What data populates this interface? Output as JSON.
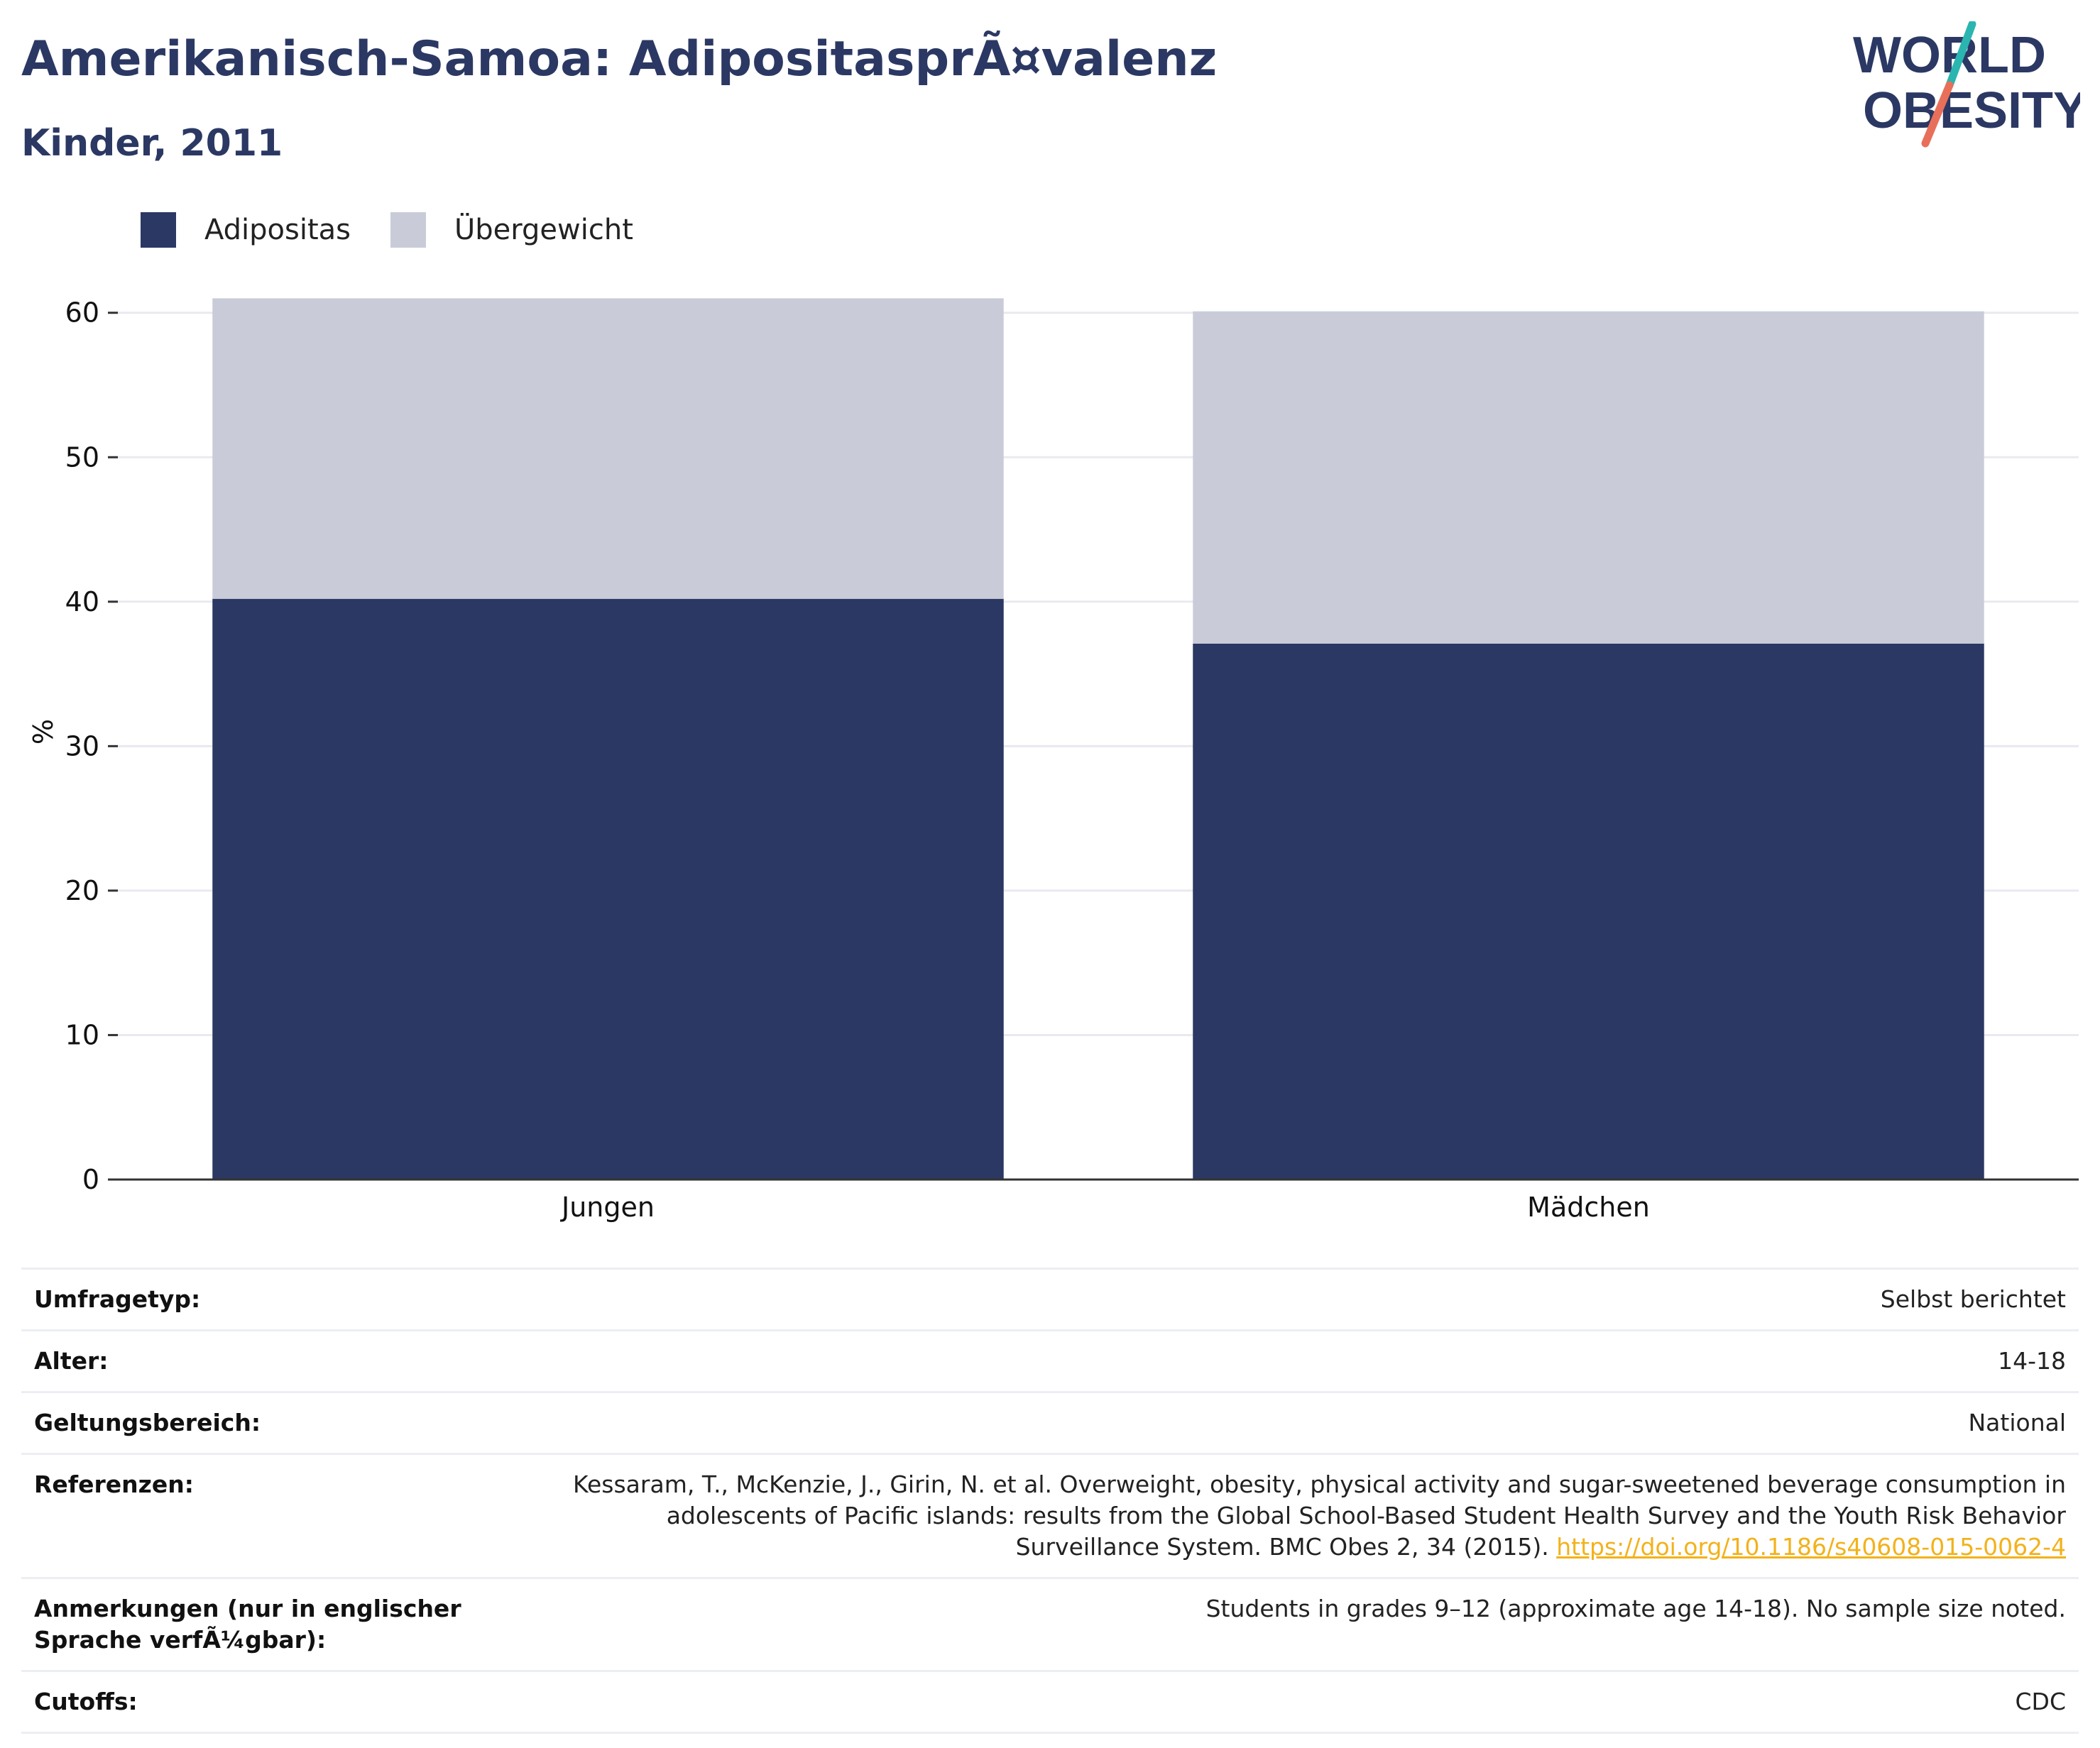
{
  "header": {
    "title": "Amerikanisch-Samoa: AdipositasprÃ¤valenz",
    "subtitle": "Kinder, 2011"
  },
  "logo": {
    "line1": "WORLD",
    "line2": "OBESITY",
    "colors": {
      "text": "#2b3863",
      "slash_top": "#2bb5b0",
      "slash_bottom": "#e8705a"
    }
  },
  "colors": {
    "obesity": "#2b3863",
    "overweight": "#c9ccd8",
    "grid": "#e8eaf0",
    "axis": "#333333"
  },
  "chart_data": {
    "type": "bar",
    "stacked": true,
    "categories": [
      "Jungen",
      "Mädchen"
    ],
    "series": [
      {
        "name": "Adipositas",
        "values": [
          40.2,
          37.1
        ],
        "color": "#2b3863"
      },
      {
        "name": "Übergewicht",
        "values": [
          20.8,
          23.0
        ],
        "color": "#c9ccd8"
      }
    ],
    "xlabel": "",
    "ylabel": "%",
    "ylim": [
      0,
      62
    ],
    "yticks": [
      0,
      10,
      20,
      30,
      40,
      50,
      60
    ],
    "grid": true,
    "legend": "top-left"
  },
  "info_table": {
    "rows": [
      {
        "label": "Umfragetyp:",
        "value": "Selbst berichtet"
      },
      {
        "label": "Alter:",
        "value": "14-18"
      },
      {
        "label": "Geltungsbereich:",
        "value": "National"
      },
      {
        "label": "Referenzen:",
        "value": "Kessaram, T., McKenzie, J., Girin, N. et al. Overweight, obesity, physical activity and sugar-sweetened beverage consumption in adolescents of Pacific islands: results from the Global School-Based Student Health Survey and the Youth Risk Behavior Surveillance System. BMC Obes 2, 34 (2015).",
        "link": "https://doi.org/10.1186/s40608-015-0062-4"
      },
      {
        "label": "Anmerkungen (nur in englischer Sprache verfÃ¼gbar):",
        "value": "Students in grades 9–12 (approximate age 14-18). No sample size noted."
      },
      {
        "label": "Cutoffs:",
        "value": "CDC"
      }
    ]
  }
}
